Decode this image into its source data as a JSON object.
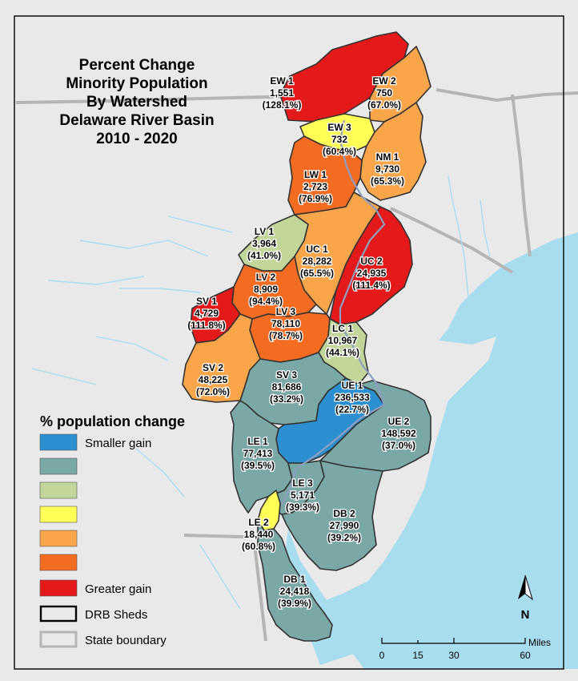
{
  "map": {
    "title_lines": [
      "Percent Change",
      "Minority Population",
      "By Watershed",
      "Delaware River Basin",
      "2010 - 2020"
    ],
    "colors": {
      "land": "#e9e9e9",
      "water": "#a8ddf0",
      "class1": "#2b8fd0",
      "class2": "#79a8a6",
      "class3": "#c2d69a",
      "class4": "#ffff55",
      "class5": "#f9a64a",
      "class6": "#f36c22",
      "class7": "#e41a1a"
    },
    "watersheds": [
      {
        "code": "EW 1",
        "value": "1,551",
        "pct": "(128.1%)"
      },
      {
        "code": "EW 2",
        "value": "750",
        "pct": "(67.0%)"
      },
      {
        "code": "EW 3",
        "value": "732",
        "pct": "(60.4%)"
      },
      {
        "code": "NM 1",
        "value": "9,730",
        "pct": "(65.3%)"
      },
      {
        "code": "LW 1",
        "value": "2,723",
        "pct": "(76.9%)"
      },
      {
        "code": "LV 1",
        "value": "3,964",
        "pct": "(41.0%)"
      },
      {
        "code": "UC 1",
        "value": "28,282",
        "pct": "(65.5%)"
      },
      {
        "code": "UC 2",
        "value": "24,935",
        "pct": "(111.4%)"
      },
      {
        "code": "LV 2",
        "value": "8,909",
        "pct": "(94.4%)"
      },
      {
        "code": "SV 1",
        "value": "4,729",
        "pct": "(111.8%)"
      },
      {
        "code": "LV 3",
        "value": "78,110",
        "pct": "(78.7%)"
      },
      {
        "code": "LC 1",
        "value": "10,967",
        "pct": "(44.1%)"
      },
      {
        "code": "SV 2",
        "value": "48,225",
        "pct": "(72.0%)"
      },
      {
        "code": "SV 3",
        "value": "81,686",
        "pct": "(33.2%)"
      },
      {
        "code": "UE 1",
        "value": "236,533",
        "pct": "(22.7%)"
      },
      {
        "code": "UE 2",
        "value": "148,592",
        "pct": "(37.0%)"
      },
      {
        "code": "LE 1",
        "value": "77,413",
        "pct": "(39.5%)"
      },
      {
        "code": "LE 3",
        "value": "5,171",
        "pct": "(39.3%)"
      },
      {
        "code": "DB 2",
        "value": "27,990",
        "pct": "(39.2%)"
      },
      {
        "code": "LE 2",
        "value": "18,440",
        "pct": "(60.8%)"
      },
      {
        "code": "DB 1",
        "value": "24,418",
        "pct": "(39.9%)"
      }
    ]
  },
  "legend": {
    "title": "% population change",
    "smaller": "Smaller gain",
    "greater": "Greater gain",
    "sheds": "DRB Sheds",
    "state": "State boundary"
  },
  "scale": {
    "ticks": [
      "0",
      "15",
      "30",
      "60"
    ],
    "unit": "Miles"
  },
  "north": "N"
}
